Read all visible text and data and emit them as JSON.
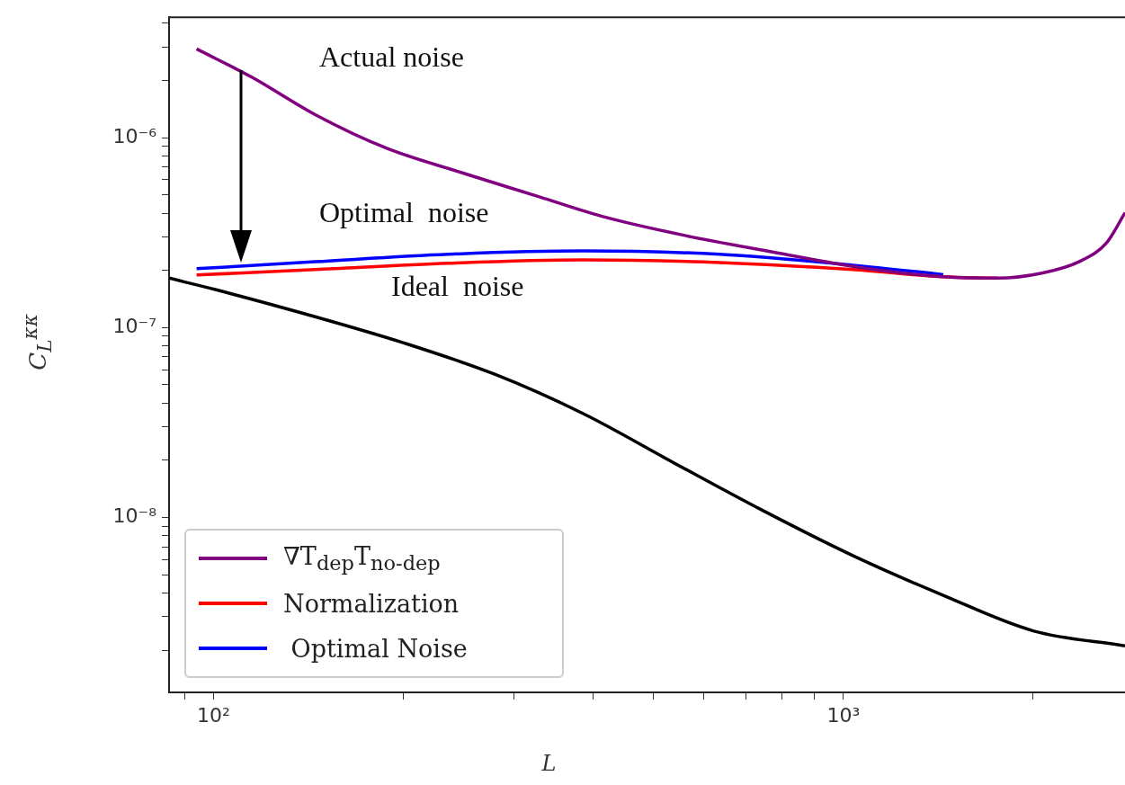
{
  "chart_data": {
    "type": "line",
    "xlabel": "L",
    "ylabel": "C$_{L}$$^{κκ}$",
    "log": "xy",
    "legend": "bottom left",
    "xlim": [
      85,
      2800
    ],
    "ylim": [
      1.2e-09,
      4.3e-06
    ],
    "xticks": [
      {
        "value": 90,
        "label": null
      },
      {
        "value": 100,
        "label": "10²"
      },
      {
        "value": 200,
        "label": null
      },
      {
        "value": 300,
        "label": null
      },
      {
        "value": 400,
        "label": null
      },
      {
        "value": 500,
        "label": null
      },
      {
        "value": 600,
        "label": null
      },
      {
        "value": 700,
        "label": null
      },
      {
        "value": 800,
        "label": null
      },
      {
        "value": 900,
        "label": null
      },
      {
        "value": 1000,
        "label": "10³"
      },
      {
        "value": 2000,
        "label": null
      }
    ],
    "yticks": [
      {
        "value": 2e-09,
        "label": null
      },
      {
        "value": 3e-09,
        "label": null
      },
      {
        "value": 4e-09,
        "label": null
      },
      {
        "value": 5e-09,
        "label": null
      },
      {
        "value": 6e-09,
        "label": null
      },
      {
        "value": 7e-09,
        "label": null
      },
      {
        "value": 8e-09,
        "label": null
      },
      {
        "value": 9e-09,
        "label": null
      },
      {
        "value": 1e-08,
        "label": "10⁻⁸"
      },
      {
        "value": 2e-08,
        "label": null
      },
      {
        "value": 3e-08,
        "label": null
      },
      {
        "value": 4e-08,
        "label": null
      },
      {
        "value": 5e-08,
        "label": null
      },
      {
        "value": 6e-08,
        "label": null
      },
      {
        "value": 7e-08,
        "label": null
      },
      {
        "value": 8e-08,
        "label": null
      },
      {
        "value": 9e-08,
        "label": null
      },
      {
        "value": 1e-07,
        "label": "10⁻⁷"
      },
      {
        "value": 2e-07,
        "label": null
      },
      {
        "value": 3e-07,
        "label": null
      },
      {
        "value": 4e-07,
        "label": null
      },
      {
        "value": 5e-07,
        "label": null
      },
      {
        "value": 6e-07,
        "label": null
      },
      {
        "value": 7e-07,
        "label": null
      },
      {
        "value": 8e-07,
        "label": null
      },
      {
        "value": 9e-07,
        "label": null
      },
      {
        "value": 1e-06,
        "label": "10⁻⁶"
      },
      {
        "value": 2e-06,
        "label": null
      },
      {
        "value": 3e-06,
        "label": null
      },
      {
        "value": 4e-06,
        "label": null
      }
    ],
    "annotations": [
      "Actual noise",
      "Optimal  noise",
      "Ideal  noise"
    ],
    "series": [
      {
        "name": "∇T$_{dep}$T$_{no-dep}$",
        "color": "#800080",
        "x": [
          94,
          115,
          145,
          188,
          249,
          329,
          414,
          556,
          772,
          1072,
          1441,
          1757,
          2074,
          2366,
          2617,
          2800
        ],
        "values": [
          2.93e-06,
          2.08e-06,
          1.32e-06,
          8.8e-07,
          6.5e-07,
          4.88e-07,
          3.85e-07,
          3.07e-07,
          2.5e-07,
          2.06e-07,
          1.85e-07,
          1.82e-07,
          1.94e-07,
          2.22e-07,
          2.79e-07,
          4.02e-07
        ]
      },
      {
        "name": "Normalization",
        "color": "#ff0000",
        "x": [
          94,
          145,
          236,
          387,
          636,
          1035,
          1441,
          1757
        ],
        "values": [
          1.89e-07,
          2.02e-07,
          2.18e-07,
          2.27e-07,
          2.2e-07,
          2.02e-07,
          1.85e-07,
          1.82e-07
        ]
      },
      {
        "name": " Optimal Noise",
        "color": "#0000ff",
        "x": [
          94,
          145,
          236,
          387,
          636,
          1035,
          1441
        ],
        "values": [
          2.04e-07,
          2.22e-07,
          2.43e-07,
          2.53e-07,
          2.43e-07,
          2.13e-07,
          1.9e-07
        ]
      },
      {
        "color": "#000000",
        "x": [
          85,
          101,
          145,
          201,
          279,
          387,
          538,
          748,
          1035,
          1441,
          2002,
          2800
        ],
        "values": [
          1.82e-07,
          1.58e-07,
          1.14e-07,
          8.28e-08,
          5.69e-08,
          3.51e-08,
          1.94e-08,
          1.08e-08,
          6.3e-09,
          3.89e-09,
          2.53e-09,
          2.11e-09
        ]
      }
    ]
  }
}
